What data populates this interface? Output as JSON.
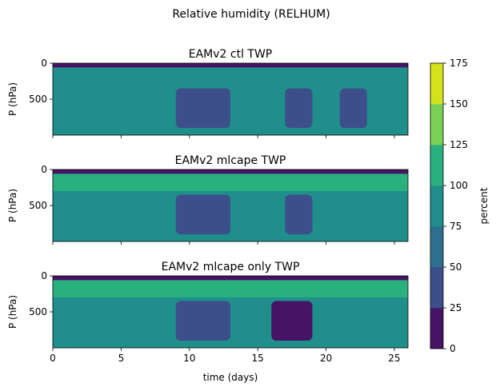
{
  "suptitle": "Relative humidity (RELHUM)",
  "chart_data": {
    "type": "heatmap",
    "x_axis": {
      "label": "time (days)",
      "ticks": [
        0,
        5,
        10,
        15,
        20,
        25
      ],
      "range": [
        0,
        26
      ]
    },
    "y_axis": {
      "label": "P (hPa)",
      "ticks": [
        0,
        500
      ],
      "range": [
        1000,
        0
      ],
      "inverted": true
    },
    "panels": [
      {
        "title": "EAMv2 ctl TWP",
        "bands": [
          {
            "p_min": 0,
            "p_max": 60,
            "level_rh": 20
          },
          {
            "p_min": 60,
            "p_max": 300,
            "level_rh": 95
          },
          {
            "p_min": 300,
            "p_max": 1000,
            "level_rh": 85
          }
        ],
        "dry_episodes": [
          {
            "day_start": 9,
            "day_end": 13,
            "level_rh": 40
          },
          {
            "day_start": 17,
            "day_end": 19,
            "level_rh": 25
          },
          {
            "day_start": 21,
            "day_end": 23,
            "level_rh": 40
          }
        ]
      },
      {
        "title": "EAMv2 mlcape TWP",
        "bands": [
          {
            "p_min": 0,
            "p_max": 60,
            "level_rh": 20
          },
          {
            "p_min": 60,
            "p_max": 300,
            "level_rh": 100
          },
          {
            "p_min": 300,
            "p_max": 1000,
            "level_rh": 80
          }
        ],
        "dry_episodes": [
          {
            "day_start": 9,
            "day_end": 13,
            "level_rh": 45
          },
          {
            "day_start": 17,
            "day_end": 19,
            "level_rh": 25
          }
        ]
      },
      {
        "title": "EAMv2 mlcape only TWP",
        "bands": [
          {
            "p_min": 0,
            "p_max": 60,
            "level_rh": 20
          },
          {
            "p_min": 60,
            "p_max": 300,
            "level_rh": 100
          },
          {
            "p_min": 300,
            "p_max": 1000,
            "level_rh": 80
          }
        ],
        "dry_episodes": [
          {
            "day_start": 9,
            "day_end": 13,
            "level_rh": 40
          },
          {
            "day_start": 16,
            "day_end": 19,
            "level_rh": 20
          }
        ]
      }
    ],
    "colorbar": {
      "label": "percent",
      "levels": [
        0,
        25,
        50,
        75,
        100,
        125,
        150,
        175
      ],
      "colors": [
        "#471365",
        "#3c4f8a",
        "#2e6e8e",
        "#208f8c",
        "#2ab07f",
        "#78d152",
        "#d2e21b"
      ]
    }
  }
}
